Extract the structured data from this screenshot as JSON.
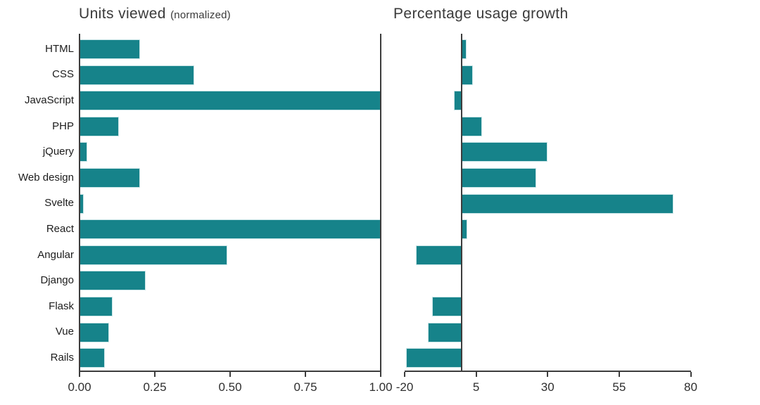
{
  "colors": {
    "bar_fill": "#16838A",
    "bar_edge": "#c9e5e7",
    "axis_line": "#3d3d3d",
    "tick_label_text": "#2f2f2f",
    "category_label_text": "#1c1c1c",
    "title_text": "#3a3a3a",
    "background": "#ffffff"
  },
  "chart_data": [
    {
      "type": "bar",
      "orientation": "horizontal",
      "title": "Units viewed",
      "title_note": "(normalized)",
      "categories": [
        "HTML",
        "CSS",
        "JavaScript",
        "PHP",
        "jQuery",
        "Web design",
        "Svelte",
        "React",
        "Angular",
        "Django",
        "Flask",
        "Vue",
        "Rails"
      ],
      "values": [
        0.2,
        0.38,
        1.0,
        0.13,
        0.026,
        0.2,
        0.014,
        1.0,
        0.49,
        0.22,
        0.11,
        0.098,
        0.083
      ],
      "xlabel": "",
      "ylabel": "",
      "xlim": [
        0,
        1.0
      ],
      "xticks": [
        0,
        0.25,
        0.5,
        0.75,
        1.0
      ],
      "xtick_labels": [
        "0.00",
        "0.25",
        "0.50",
        "0.75",
        "1.00"
      ],
      "grid": false,
      "show_category_labels": true,
      "legend": "none"
    },
    {
      "type": "bar",
      "orientation": "horizontal",
      "title": "Percentage usage growth",
      "title_note": "",
      "categories": [
        "HTML",
        "CSS",
        "JavaScript",
        "PHP",
        "jQuery",
        "Web design",
        "Svelte",
        "React",
        "Angular",
        "Django",
        "Flask",
        "Vue",
        "Rails"
      ],
      "values": [
        1.7,
        3.9,
        -2.8,
        7,
        30,
        26,
        74,
        2,
        -16,
        0,
        -10.5,
        -11.8,
        -19.6
      ],
      "xlabel": "",
      "ylabel": "",
      "xlim": [
        -28.5,
        80
      ],
      "xticks": [
        -20,
        5,
        30,
        55,
        80
      ],
      "xtick_labels": [
        "-20",
        "5",
        "30",
        "55",
        "80"
      ],
      "grid": false,
      "show_category_labels": false,
      "zero_line": true,
      "legend": "none"
    }
  ]
}
